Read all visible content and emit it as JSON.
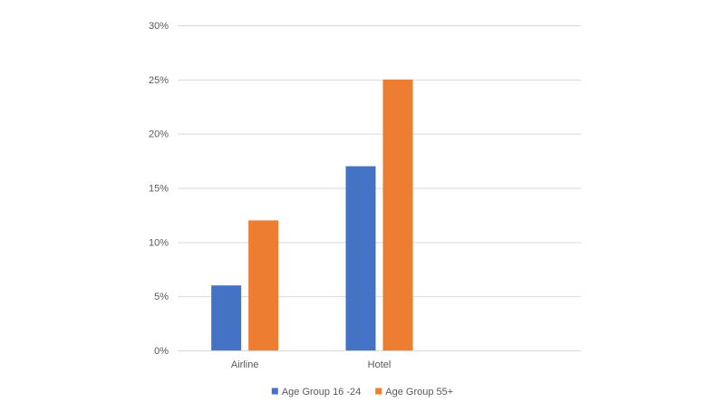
{
  "chart_data": {
    "type": "bar",
    "title": "",
    "xlabel": "",
    "ylabel": "",
    "categories": [
      "Airline",
      "Hotel",
      ""
    ],
    "series": [
      {
        "name": "Age Group 16 -24",
        "color": "#4472c4",
        "values": [
          6,
          17,
          null
        ]
      },
      {
        "name": "Age Group 55+",
        "color": "#ed7d31",
        "values": [
          12,
          25,
          null
        ]
      }
    ],
    "ylim": [
      0,
      30
    ],
    "yticks": [
      0,
      5,
      10,
      15,
      20,
      25,
      30
    ],
    "ytick_labels": [
      "0%",
      "5%",
      "10%",
      "15%",
      "20%",
      "25%",
      "30%"
    ],
    "value_unit": "%",
    "grid": true,
    "legend_position": "bottom"
  }
}
